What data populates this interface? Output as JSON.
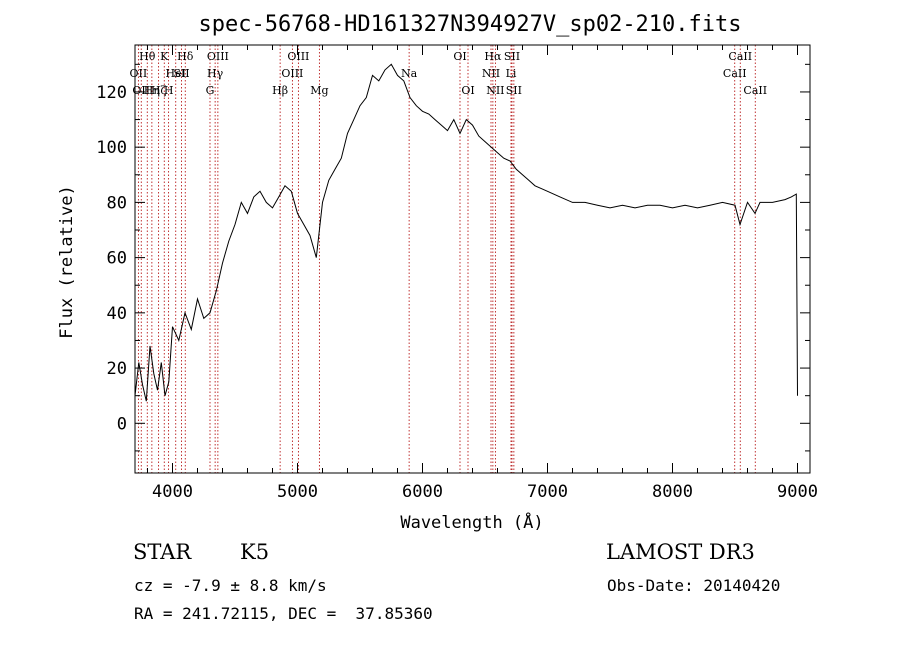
{
  "chart_data": {
    "type": "line",
    "title": "spec-56768-HD161327N394927V_sp02-210.fits",
    "xlabel": "Wavelength (Å)",
    "ylabel": "Flux (relative)",
    "xlim": [
      3700,
      9100
    ],
    "ylim": [
      -18,
      137
    ],
    "xticks": [
      4000,
      5000,
      6000,
      7000,
      8000,
      9000
    ],
    "yticks": [
      0,
      20,
      40,
      60,
      80,
      100,
      120
    ],
    "series": [
      {
        "x": [
          3700,
          3730,
          3760,
          3790,
          3820,
          3850,
          3880,
          3910,
          3940,
          3970,
          4000,
          4050,
          4100,
          4150,
          4200,
          4250,
          4300,
          4350,
          4400,
          4450,
          4500,
          4550,
          4600,
          4650,
          4700,
          4750,
          4800,
          4850,
          4900,
          4950,
          5000,
          5050,
          5100,
          5150,
          5200,
          5250,
          5300,
          5350,
          5400,
          5450,
          5500,
          5550,
          5600,
          5650,
          5700,
          5750,
          5800,
          5850,
          5900,
          5950,
          6000,
          6050,
          6100,
          6150,
          6200,
          6250,
          6300,
          6350,
          6400,
          6450,
          6500,
          6550,
          6600,
          6650,
          6700,
          6750,
          6800,
          6850,
          6900,
          6950,
          7000,
          7100,
          7200,
          7300,
          7400,
          7500,
          7600,
          7700,
          7800,
          7900,
          8000,
          8100,
          8200,
          8300,
          8400,
          8500,
          8540,
          8600,
          8660,
          8700,
          8800,
          8900,
          8950,
          8990,
          9000
        ],
        "y": [
          10,
          22,
          14,
          8,
          28,
          18,
          12,
          22,
          10,
          15,
          35,
          30,
          40,
          34,
          45,
          38,
          40,
          48,
          58,
          66,
          72,
          80,
          76,
          82,
          84,
          80,
          78,
          82,
          86,
          84,
          76,
          72,
          68,
          60,
          80,
          88,
          92,
          96,
          105,
          110,
          115,
          118,
          126,
          124,
          128,
          130,
          126,
          124,
          118,
          115,
          113,
          112,
          110,
          108,
          106,
          110,
          105,
          110,
          108,
          104,
          102,
          100,
          98,
          96,
          95,
          92,
          90,
          88,
          86,
          85,
          84,
          82,
          80,
          80,
          79,
          78,
          79,
          78,
          79,
          79,
          78,
          79,
          78,
          79,
          80,
          79,
          72,
          80,
          76,
          80,
          80,
          81,
          82,
          83,
          10
        ]
      }
    ],
    "grid": false,
    "lines": [
      {
        "lambda": 3727,
        "label": "OII",
        "row": 1
      },
      {
        "lambda": 3750,
        "label": "OII",
        "row": 2
      },
      {
        "lambda": 3798,
        "label": "Hθ",
        "row": 0
      },
      {
        "lambda": 3835,
        "label": "Hη",
        "row": 2
      },
      {
        "lambda": 3889,
        "label": "Hζ",
        "row": 2
      },
      {
        "lambda": 3934,
        "label": "K",
        "row": 0
      },
      {
        "lambda": 3969,
        "label": "H",
        "row": 2
      },
      {
        "lambda": 4026,
        "label": "HeI",
        "row": 1
      },
      {
        "lambda": 4072,
        "label": "SII",
        "row": 1
      },
      {
        "lambda": 4102,
        "label": "Hδ",
        "row": 0
      },
      {
        "lambda": 4300,
        "label": "G",
        "row": 2
      },
      {
        "lambda": 4341,
        "label": "Hγ",
        "row": 1
      },
      {
        "lambda": 4363,
        "label": "OIII",
        "row": 0
      },
      {
        "lambda": 4861,
        "label": "Hβ",
        "row": 2
      },
      {
        "lambda": 4959,
        "label": "OIII",
        "row": 1
      },
      {
        "lambda": 5007,
        "label": "OIII",
        "row": 0
      },
      {
        "lambda": 5175,
        "label": "Mg",
        "row": 2
      },
      {
        "lambda": 5893,
        "label": "Na",
        "row": 1
      },
      {
        "lambda": 6300,
        "label": "OI",
        "row": 0
      },
      {
        "lambda": 6364,
        "label": "OI",
        "row": 2
      },
      {
        "lambda": 6548,
        "label": "NII",
        "row": 1
      },
      {
        "lambda": 6563,
        "label": "Hα",
        "row": 0
      },
      {
        "lambda": 6583,
        "label": "NII",
        "row": 2
      },
      {
        "lambda": 6708,
        "label": "Li",
        "row": 1
      },
      {
        "lambda": 6716,
        "label": "SII",
        "row": 0
      },
      {
        "lambda": 6731,
        "label": "SII",
        "row": 2
      },
      {
        "lambda": 8498,
        "label": "CaII",
        "row": 1
      },
      {
        "lambda": 8542,
        "label": "CaII",
        "row": 0
      },
      {
        "lambda": 8662,
        "label": "CaII",
        "row": 2
      }
    ]
  },
  "info": {
    "object_type": "STAR",
    "subclass": "K5",
    "survey": "LAMOST DR3",
    "cz": "cz = -7.9 ± 8.8 km/s",
    "obs_date": "Obs-Date: 20140420",
    "coords": "RA = 241.72115, DEC =  37.85360"
  }
}
